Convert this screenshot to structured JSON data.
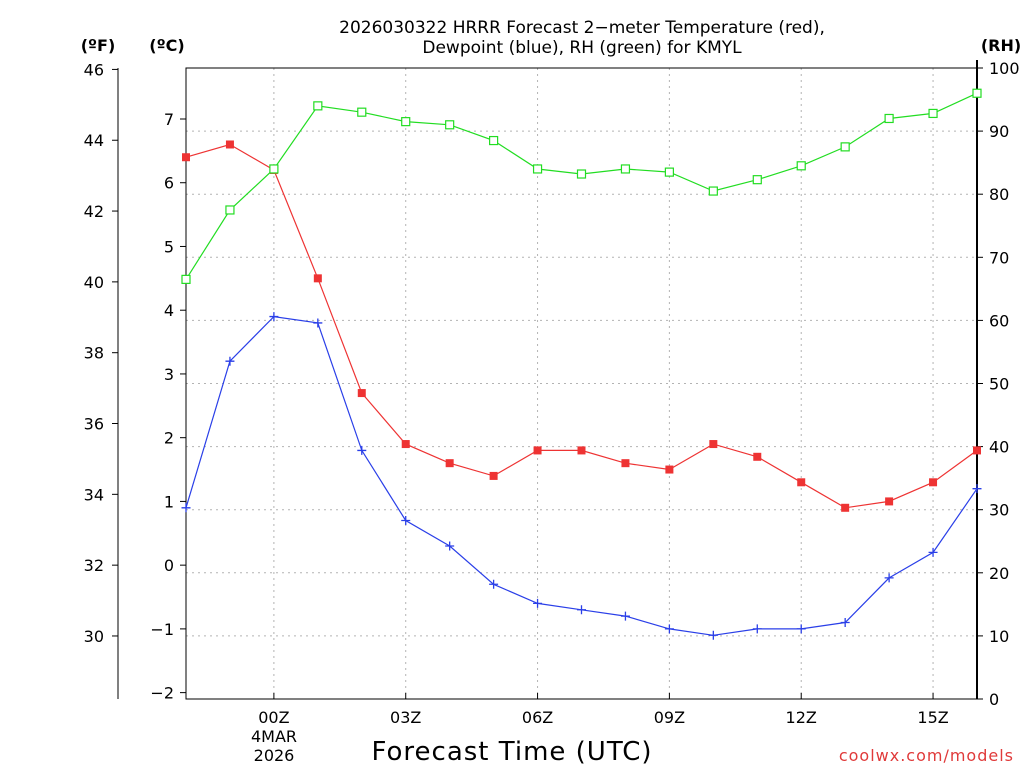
{
  "chart_data": {
    "type": "line",
    "title_lines": [
      "2026030322 HRRR Forecast 2−meter Temperature (red),",
      "Dewpoint (blue), RH (green) for KMYL"
    ],
    "units": {
      "fahrenheit": "(ºF)",
      "celsius": "(ºC)",
      "rh": "(RH)"
    },
    "xlabel": "Forecast Time (UTC)",
    "date_label": [
      "4MAR",
      "2026"
    ],
    "source": "coolwx.com/models",
    "x_hours": [
      -2,
      -1,
      0,
      1,
      2,
      3,
      4,
      5,
      6,
      7,
      8,
      9,
      10,
      11,
      12,
      13,
      14,
      15,
      16
    ],
    "x_ticks": [
      {
        "hour": 0,
        "label": "00Z"
      },
      {
        "hour": 3,
        "label": "03Z"
      },
      {
        "hour": 6,
        "label": "06Z"
      },
      {
        "hour": 9,
        "label": "09Z"
      },
      {
        "hour": 12,
        "label": "12Z"
      },
      {
        "hour": 15,
        "label": "15Z"
      }
    ],
    "xlim": [
      -2,
      16
    ],
    "ylim_celsius": [
      -2.1,
      7.8
    ],
    "ylim_rh": [
      0,
      100
    ],
    "y_ticks_celsius": [
      "-2",
      "-1",
      "0",
      "1",
      "2",
      "3",
      "4",
      "5",
      "6",
      "7"
    ],
    "y_ticks_fahrenheit": [
      "30",
      "32",
      "34",
      "36",
      "38",
      "40",
      "42",
      "44",
      "46"
    ],
    "y_ticks_rh": [
      "0",
      "10",
      "20",
      "30",
      "40",
      "50",
      "60",
      "70",
      "80",
      "90",
      "100"
    ],
    "series": [
      {
        "name": "Temperature",
        "unit": "C",
        "axis": "celsius",
        "color": "#ee3333",
        "marker": "filled-square",
        "values": [
          6.4,
          6.6,
          6.2,
          4.5,
          2.7,
          1.9,
          1.6,
          1.4,
          1.8,
          1.8,
          1.6,
          1.5,
          1.9,
          1.7,
          1.3,
          0.9,
          1.0,
          1.3,
          1.8
        ]
      },
      {
        "name": "Dewpoint",
        "unit": "C",
        "axis": "celsius",
        "color": "#2a3fe8",
        "marker": "plus",
        "values": [
          0.9,
          3.2,
          3.9,
          3.8,
          1.8,
          0.7,
          0.3,
          -0.3,
          -0.6,
          -0.7,
          -0.8,
          -1.0,
          -1.1,
          -1.0,
          -1.0,
          -0.9,
          -0.2,
          0.2,
          1.2
        ]
      },
      {
        "name": "Relative Humidity",
        "unit": "%",
        "axis": "rh",
        "color": "#22dd22",
        "marker": "open-square",
        "values": [
          66.5,
          77.5,
          84,
          94,
          93,
          91.5,
          91,
          88.5,
          84,
          83.2,
          84,
          83.5,
          80.5,
          82.3,
          84.5,
          87.5,
          92,
          92.8,
          96
        ]
      }
    ]
  }
}
